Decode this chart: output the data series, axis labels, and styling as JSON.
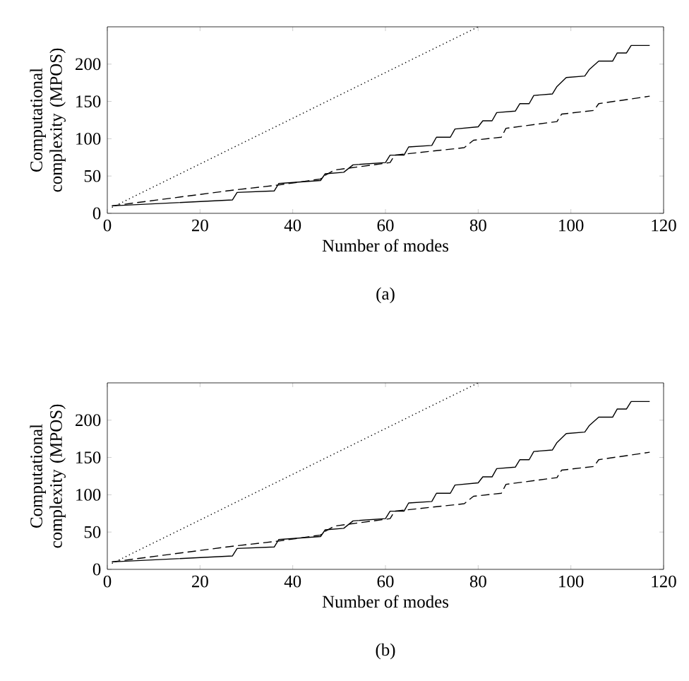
{
  "chart_data": [
    {
      "type": "line",
      "xlabel": "Number of modes",
      "ylabel": "Computational complexity (MPOS)",
      "xlim": [
        0,
        120
      ],
      "ylim": [
        0,
        250
      ],
      "xticks": [
        0,
        20,
        40,
        60,
        80,
        100,
        120
      ],
      "yticks": [
        0,
        50,
        100,
        150,
        200
      ],
      "grid": false,
      "marker": "none",
      "annotations": [
        "(a)"
      ],
      "series": [
        {
          "color": "#000000",
          "line_style": "solid",
          "x": [
            1,
            27,
            28,
            36,
            37,
            46,
            47,
            51,
            53,
            60,
            61,
            64,
            65,
            70,
            71,
            74,
            75,
            80,
            81,
            83,
            84,
            88,
            89,
            91,
            92,
            96,
            97,
            99,
            103,
            104,
            106,
            109,
            110,
            112,
            113,
            117
          ],
          "values": [
            10,
            18,
            28,
            30,
            40,
            44,
            53,
            55,
            65,
            68,
            78,
            78,
            89,
            91,
            102,
            102,
            113,
            116,
            124,
            124,
            135,
            137,
            147,
            147,
            158,
            160,
            170,
            182,
            184,
            193,
            204,
            204,
            215,
            215,
            225,
            225
          ]
        },
        {
          "color": "#000000",
          "line_style": "dashed",
          "x": [
            1,
            27,
            37,
            46,
            47,
            49,
            61,
            62,
            77,
            79,
            85,
            86,
            97,
            98,
            105,
            106,
            117
          ],
          "values": [
            10,
            31,
            38,
            46,
            51,
            58,
            68,
            78,
            88,
            98,
            102,
            114,
            123,
            133,
            138,
            147,
            157
          ]
        },
        {
          "color": "#000000",
          "line_style": "dotted",
          "x": [
            1,
            80
          ],
          "values": [
            8,
            250
          ]
        }
      ]
    },
    {
      "type": "line",
      "xlabel": "Number of modes",
      "ylabel": "Computational complexity (MPOS)",
      "xlim": [
        0,
        120
      ],
      "ylim": [
        0,
        250
      ],
      "xticks": [
        0,
        20,
        40,
        60,
        80,
        100,
        120
      ],
      "yticks": [
        0,
        50,
        100,
        150,
        200
      ],
      "grid": false,
      "marker": "none",
      "annotations": [
        "(b)"
      ],
      "series": [
        {
          "color": "#000000",
          "line_style": "solid",
          "x": [
            1,
            27,
            28,
            36,
            37,
            46,
            47,
            51,
            53,
            60,
            61,
            64,
            65,
            70,
            71,
            74,
            75,
            80,
            81,
            83,
            84,
            88,
            89,
            91,
            92,
            96,
            97,
            99,
            103,
            104,
            106,
            109,
            110,
            112,
            113,
            117
          ],
          "values": [
            10,
            18,
            28,
            30,
            40,
            44,
            53,
            55,
            65,
            68,
            78,
            78,
            89,
            91,
            102,
            102,
            113,
            116,
            124,
            124,
            135,
            137,
            147,
            147,
            158,
            160,
            170,
            182,
            184,
            193,
            204,
            204,
            215,
            215,
            225,
            225
          ]
        },
        {
          "color": "#000000",
          "line_style": "dashed",
          "x": [
            1,
            27,
            37,
            46,
            47,
            49,
            61,
            62,
            77,
            79,
            85,
            86,
            97,
            98,
            105,
            106,
            117
          ],
          "values": [
            10,
            31,
            38,
            46,
            51,
            58,
            68,
            78,
            88,
            98,
            102,
            114,
            123,
            133,
            138,
            147,
            157
          ]
        },
        {
          "color": "#000000",
          "line_style": "dotted",
          "x": [
            1,
            80
          ],
          "values": [
            8,
            250
          ]
        }
      ]
    }
  ]
}
